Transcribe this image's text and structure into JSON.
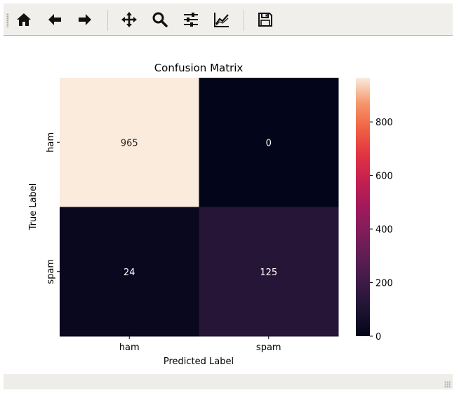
{
  "toolbar": {
    "buttons": [
      {
        "name": "home-button",
        "icon": "home-icon"
      },
      {
        "name": "back-button",
        "icon": "arrow-left-icon"
      },
      {
        "name": "forward-button",
        "icon": "arrow-right-icon"
      },
      {
        "name": "pan-button",
        "icon": "move-icon"
      },
      {
        "name": "zoom-button",
        "icon": "magnifier-icon"
      },
      {
        "name": "configure-subplots-button",
        "icon": "sliders-icon"
      },
      {
        "name": "edit-axis-button",
        "icon": "line-chart-icon"
      },
      {
        "name": "save-button",
        "icon": "floppy-disk-icon"
      }
    ]
  },
  "chart_data": {
    "type": "heatmap",
    "title": "Confusion Matrix",
    "xlabel": "Predicted Label",
    "ylabel": "True Label",
    "x_categories": [
      "ham",
      "spam"
    ],
    "y_categories": [
      "ham",
      "spam"
    ],
    "values": [
      [
        965,
        0
      ],
      [
        24,
        125
      ]
    ],
    "colorbar": {
      "min": 0,
      "max": 965,
      "ticks": [
        0,
        200,
        400,
        600,
        800
      ],
      "colormap": "rocket"
    },
    "annotation_colors": {
      "light_cell": "#262626",
      "dark_cell": "#ffffff"
    }
  }
}
